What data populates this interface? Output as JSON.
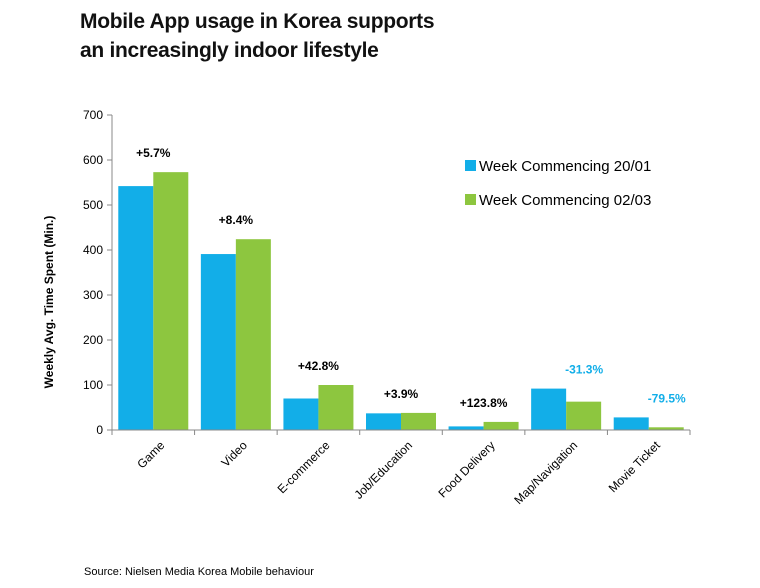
{
  "title_lines": [
    "Mobile App usage in Korea supports",
    "an increasingly indoor lifestyle"
  ],
  "source": "Source: Nielsen Media Korea Mobile behaviour",
  "colors": {
    "series1": "#12aee8",
    "series2": "#8dc63f",
    "positive_label": "#000000",
    "negative_label": "#12aee8"
  },
  "chart_data": {
    "type": "bar",
    "title": "Mobile App usage in Korea supports an increasingly indoor lifestyle",
    "xlabel": "",
    "ylabel": "Weekly Avg. Time Spent (Min.)",
    "ylim": [
      0,
      700
    ],
    "yticks": [
      0,
      100,
      200,
      300,
      400,
      500,
      600,
      700
    ],
    "grid": false,
    "legend_position": "top-right",
    "categories": [
      "Game",
      "Video",
      "E-commerce",
      "Job/Education",
      "Food Delivery",
      "Map/Navigation",
      "Movie Ticket"
    ],
    "series": [
      {
        "name": "Week Commencing 20/01",
        "values": [
          542,
          391,
          70,
          37,
          8,
          92,
          28
        ]
      },
      {
        "name": "Week Commencing 02/03",
        "values": [
          573,
          424,
          100,
          38,
          18,
          63,
          6
        ]
      }
    ],
    "annotations": [
      "+5.7%",
      "+8.4%",
      "+42.8%",
      "+3.9%",
      "+123.8%",
      "-31.3%",
      "-79.5%"
    ]
  }
}
